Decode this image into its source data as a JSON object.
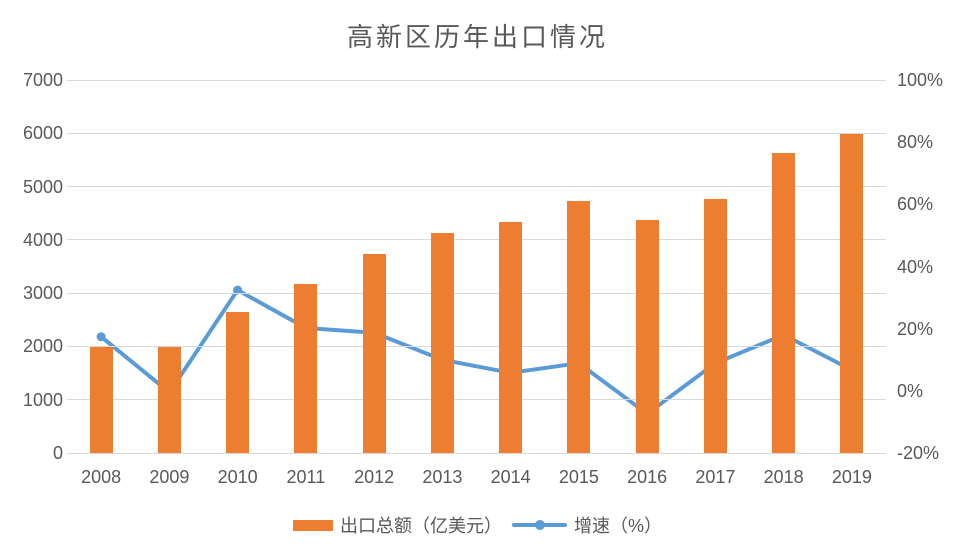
{
  "title": "高新区历年出口情况",
  "legend": {
    "bar_label": "出口总额（亿美元）",
    "line_label": "增速（%）"
  },
  "colors": {
    "bar": "#ED7D31",
    "line": "#5B9BD5",
    "grid": "#D9D9D9",
    "text": "#595959",
    "background": "#FFFFFF"
  },
  "chart_data": {
    "type": "bar",
    "subtype": "combo-bar-line",
    "title": "高新区历年出口情况",
    "categories": [
      "2008",
      "2009",
      "2010",
      "2011",
      "2012",
      "2013",
      "2014",
      "2015",
      "2016",
      "2017",
      "2018",
      "2019"
    ],
    "series": [
      {
        "name": "出口总额（亿美元）",
        "type": "bar",
        "yaxis": "left",
        "color": "#ED7D31",
        "values": [
          1990,
          1980,
          2640,
          3170,
          3740,
          4120,
          4330,
          4730,
          4380,
          4770,
          5630,
          5980
        ]
      },
      {
        "name": "增速（%）",
        "type": "line",
        "yaxis": "right",
        "color": "#5B9BD5",
        "values": [
          17.4,
          -0.5,
          32.4,
          20.2,
          18.7,
          10.0,
          5.8,
          8.9,
          -7.4,
          8.9,
          18.0,
          6.7
        ]
      }
    ],
    "left_axis": {
      "min": 0,
      "max": 7000,
      "step": 1000,
      "labels": [
        "0",
        "1000",
        "2000",
        "3000",
        "4000",
        "5000",
        "6000",
        "7000"
      ]
    },
    "right_axis": {
      "min": -20,
      "max": 100,
      "step": 20,
      "labels": [
        "-20%",
        "0%",
        "20%",
        "40%",
        "60%",
        "80%",
        "100%"
      ]
    },
    "grid": "horizontal-major-left-axis",
    "legend_position": "bottom"
  }
}
